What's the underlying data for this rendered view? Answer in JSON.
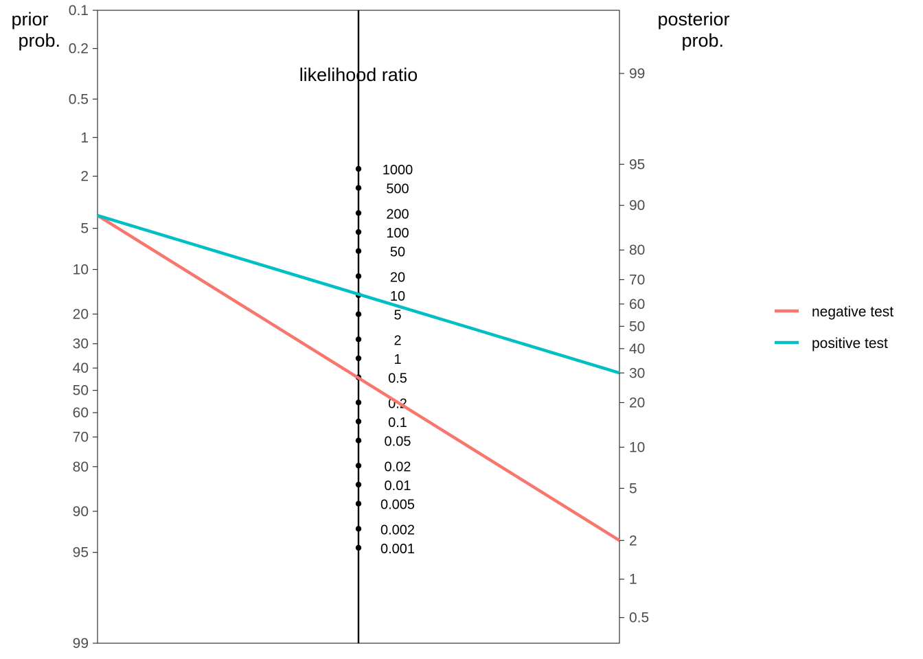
{
  "chart_data": {
    "type": "line",
    "chart_kind": "Fagan nomogram",
    "left_axis": {
      "title_lines": [
        "prior",
        "prob."
      ],
      "ticks": [
        0.1,
        0.2,
        0.5,
        1,
        2,
        5,
        10,
        20,
        30,
        40,
        50,
        60,
        70,
        80,
        90,
        95,
        99
      ],
      "tick_labels": [
        "0.1",
        "0.2",
        "0.5",
        "1",
        "2",
        "5",
        "10",
        "20",
        "30",
        "40",
        "50",
        "60",
        "70",
        "80",
        "90",
        "95",
        "99"
      ],
      "orientation": "top-to-bottom increasing"
    },
    "right_axis": {
      "title_lines": [
        "posterior",
        "prob."
      ],
      "ticks": [
        99,
        95,
        90,
        80,
        70,
        60,
        50,
        40,
        30,
        20,
        10,
        5,
        2,
        1,
        0.5
      ],
      "tick_labels": [
        "99",
        "95",
        "90",
        "80",
        "70",
        "60",
        "50",
        "40",
        "30",
        "20",
        "10",
        "5",
        "2",
        "1",
        "0.5"
      ],
      "orientation": "top-to-bottom decreasing"
    },
    "center_axis": {
      "title": "likelihood ratio",
      "ticks": [
        1000,
        500,
        200,
        100,
        50,
        20,
        10,
        5,
        2,
        1,
        0.5,
        0.2,
        0.1,
        0.05,
        0.02,
        0.01,
        0.005,
        0.002,
        0.001
      ],
      "tick_labels": [
        "1000",
        "500",
        "200",
        "100",
        "50",
        "20",
        "10",
        "5",
        "2",
        "1",
        "0.5",
        "0.2",
        "0.1",
        "0.05",
        "0.02",
        "0.01",
        "0.005",
        "0.002",
        "0.001"
      ]
    },
    "series": [
      {
        "name": "negative test",
        "color": "#F8766D",
        "prior": 4,
        "likelihood_ratio": 0.5,
        "posterior": 2
      },
      {
        "name": "positive test",
        "color": "#00BFC4",
        "prior": 4,
        "likelihood_ratio": 10,
        "posterior": 30
      }
    ],
    "grid": false,
    "legend_position": "right"
  }
}
